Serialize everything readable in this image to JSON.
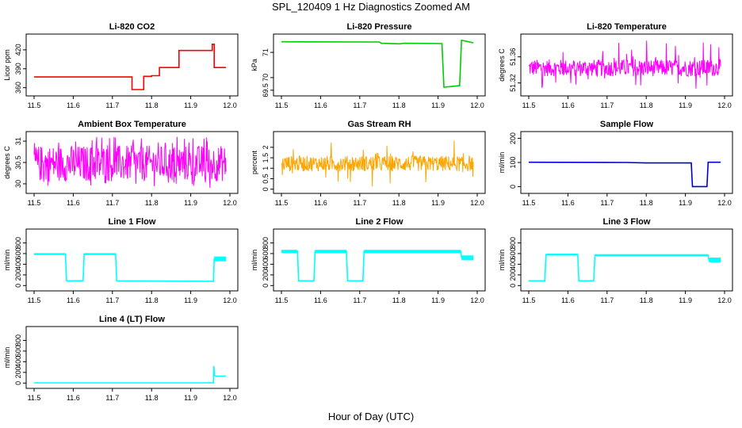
{
  "figure": {
    "title": "SPL_120409  1 Hz Diagnostics Zoomed AM",
    "x_axis_caption": "Hour of Day (UTC)"
  },
  "chart_data": [
    {
      "type": "line",
      "title": "Li-820 CO2",
      "ylabel": "Licor ppm",
      "color": "#ff0000",
      "xlim": [
        11.5,
        12.0
      ],
      "xticks": [
        "11.5",
        "11.6",
        "11.7",
        "11.8",
        "11.9",
        "12.0"
      ],
      "ylim": [
        352,
        440
      ],
      "yticks": [
        360,
        390,
        420
      ],
      "style": "steps",
      "series": [
        {
          "x": [
            11.5,
            11.75,
            11.75,
            11.78,
            11.78,
            11.8,
            11.8,
            11.82,
            11.82,
            11.87,
            11.87,
            11.955,
            11.955,
            11.96,
            11.96,
            11.99
          ],
          "y": [
            377,
            377,
            357,
            357,
            378,
            378,
            379,
            379,
            392,
            392,
            419,
            419,
            429,
            429,
            392,
            392
          ]
        }
      ]
    },
    {
      "type": "line",
      "title": "Li-820 Pressure",
      "ylabel": "kPa",
      "color": "#00cc00",
      "xlim": [
        11.5,
        12.0
      ],
      "xticks": [
        "11.5",
        "11.6",
        "11.7",
        "11.8",
        "11.9",
        "12.0"
      ],
      "ylim": [
        69.4,
        71.6
      ],
      "yticks": [
        69.5,
        70.0,
        71.0
      ],
      "series": [
        {
          "x": [
            11.5,
            11.75,
            11.755,
            11.8,
            11.815,
            11.91,
            11.915,
            11.955,
            11.96,
            11.97,
            11.99
          ],
          "y": [
            71.42,
            71.41,
            71.36,
            71.34,
            71.36,
            71.35,
            69.62,
            69.68,
            71.48,
            71.45,
            71.38
          ]
        }
      ]
    },
    {
      "type": "line",
      "title": "Li-820 Temperature",
      "ylabel": "degrees C",
      "color": "#ff00ff",
      "xlim": [
        11.5,
        12.0
      ],
      "xticks": [
        "11.5",
        "11.6",
        "11.7",
        "11.8",
        "11.9",
        "12.0"
      ],
      "ylim": [
        51.305,
        51.39
      ],
      "yticks": [
        51.32,
        51.36
      ],
      "style": "noise_band",
      "series": [
        {
          "x": [
            11.5,
            11.99
          ],
          "band": [
            51.33,
            51.356
          ],
          "spikes": [
            51.31,
            51.385
          ]
        }
      ]
    },
    {
      "type": "line",
      "title": "Ambient Box Temperature",
      "ylabel": "degrees C",
      "color": "#ff00ff",
      "xlim": [
        11.5,
        12.0
      ],
      "xticks": [
        "11.5",
        "11.6",
        "11.7",
        "11.8",
        "11.9",
        "12.0"
      ],
      "ylim": [
        29.85,
        31.15
      ],
      "yticks": [
        30.0,
        30.5,
        31.0
      ],
      "style": "noise_band",
      "series": [
        {
          "x": [
            11.5,
            11.99
          ],
          "band": [
            30.05,
            30.9
          ],
          "spikes": [
            29.9,
            31.1
          ]
        }
      ]
    },
    {
      "type": "line",
      "title": "Gas Stream RH",
      "ylabel": "percent",
      "color": "#ffa500",
      "xlim": [
        11.5,
        12.0
      ],
      "xticks": [
        "11.5",
        "11.6",
        "11.7",
        "11.8",
        "11.9",
        "12.0"
      ],
      "ylim": [
        -0.05,
        2.6
      ],
      "yticks": [
        0.0,
        0.5,
        1.0,
        1.5,
        2.0
      ],
      "style": "noise_band",
      "series": [
        {
          "x": [
            11.5,
            11.99
          ],
          "band": [
            0.85,
            1.6
          ],
          "spikes": [
            0.1,
            2.4
          ]
        }
      ]
    },
    {
      "type": "line",
      "title": "Sample Flow",
      "ylabel": "ml/min",
      "color": "#0000cc",
      "xlim": [
        11.5,
        12.0
      ],
      "xticks": [
        "11.5",
        "11.6",
        "11.7",
        "11.8",
        "11.9",
        "12.0"
      ],
      "ylim": [
        -15,
        215
      ],
      "yticks": [
        0,
        100,
        200
      ],
      "series": [
        {
          "x": [
            11.5,
            11.75,
            11.8,
            11.915,
            11.918,
            11.955,
            11.958,
            11.99
          ],
          "y": [
            101,
            100,
            98,
            98,
            0,
            0,
            101,
            101
          ]
        }
      ]
    },
    {
      "type": "line",
      "title": "Line 1 Flow",
      "ylabel": "ml/min",
      "color": "#00ffff",
      "xlim": [
        11.5,
        12.0
      ],
      "xticks": [
        "11.5",
        "11.6",
        "11.7",
        "11.8",
        "11.9",
        "12.0"
      ],
      "ylim": [
        -40,
        1000
      ],
      "yticks": [
        0,
        200,
        400,
        600,
        800
      ],
      "series": [
        {
          "x": [
            11.5,
            11.58,
            11.583,
            11.625,
            11.628,
            11.708,
            11.711,
            11.958,
            11.96,
            11.99
          ],
          "y": [
            590,
            590,
            90,
            90,
            590,
            590,
            90,
            80,
            500,
            500
          ],
          "band_w": [
            18,
            18,
            0,
            0,
            18,
            18,
            0,
            0,
            45,
            45
          ]
        }
      ]
    },
    {
      "type": "line",
      "title": "Line 2 Flow",
      "ylabel": "ml/min",
      "color": "#00ffff",
      "xlim": [
        11.5,
        12.0
      ],
      "xticks": [
        "11.5",
        "11.6",
        "11.7",
        "11.8",
        "11.9",
        "12.0"
      ],
      "ylim": [
        -40,
        1000
      ],
      "yticks": [
        0,
        200,
        400,
        600,
        800
      ],
      "series": [
        {
          "x": [
            11.5,
            11.541,
            11.544,
            11.583,
            11.586,
            11.666,
            11.669,
            11.708,
            11.711,
            11.958,
            11.96,
            11.99
          ],
          "y": [
            640,
            640,
            90,
            90,
            640,
            640,
            90,
            90,
            640,
            640,
            520,
            520
          ],
          "band_w": [
            30,
            30,
            0,
            0,
            30,
            30,
            0,
            0,
            30,
            30,
            45,
            45
          ]
        }
      ]
    },
    {
      "type": "line",
      "title": "Line 3 Flow",
      "ylabel": "ml/min",
      "color": "#00ffff",
      "xlim": [
        11.5,
        12.0
      ],
      "xticks": [
        "11.5",
        "11.6",
        "11.7",
        "11.8",
        "11.9",
        "12.0"
      ],
      "ylim": [
        -40,
        1000
      ],
      "yticks": [
        0,
        200,
        400,
        600,
        800
      ],
      "series": [
        {
          "x": [
            11.5,
            11.541,
            11.544,
            11.625,
            11.628,
            11.666,
            11.669,
            11.958,
            11.96,
            11.99
          ],
          "y": [
            90,
            90,
            580,
            580,
            90,
            90,
            570,
            570,
            480,
            480
          ],
          "band_w": [
            0,
            0,
            18,
            18,
            0,
            0,
            18,
            18,
            45,
            45
          ]
        }
      ]
    },
    {
      "type": "line",
      "title": "Line 4 (LT) Flow",
      "ylabel": "ml/min",
      "color": "#00ffff",
      "xlim": [
        11.5,
        12.0
      ],
      "xticks": [
        "11.5",
        "11.6",
        "11.7",
        "11.8",
        "11.9",
        "12.0"
      ],
      "ylim": [
        -40,
        1000
      ],
      "yticks": [
        0,
        200,
        400,
        600,
        800
      ],
      "series": [
        {
          "x": [
            11.5,
            11.958,
            11.959,
            11.961,
            11.965,
            11.99
          ],
          "y": [
            5,
            5,
            320,
            140,
            130,
            130
          ]
        }
      ]
    }
  ]
}
